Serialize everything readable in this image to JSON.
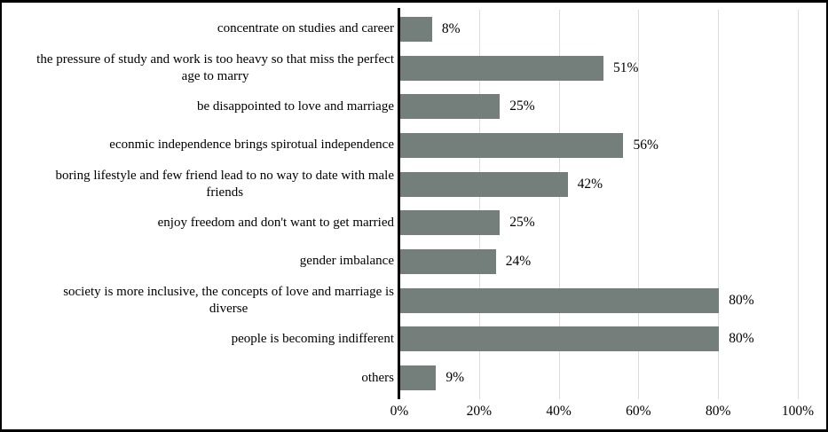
{
  "figure": {
    "title": "",
    "background": "#ffffff",
    "border_color": "#000000"
  },
  "chart_data": {
    "type": "bar",
    "orientation": "horizontal",
    "title": "",
    "xlabel": "",
    "ylabel": "",
    "xlim": [
      0,
      100
    ],
    "x_ticks": [
      0,
      20,
      40,
      60,
      80,
      100
    ],
    "x_tick_labels": [
      "0%",
      "20%",
      "40%",
      "60%",
      "80%",
      "100%"
    ],
    "grid": "vertical-gridlines-only",
    "legend": "none",
    "bar_color": "#747e7a",
    "gridline_color": "#dcdcdc",
    "axis_color": "#000000",
    "text_color": "#000000",
    "categories": [
      "concentrate on studies and career",
      "the pressure of study and work is too heavy so that miss the perfect\nage to marry",
      "be disappointed to love and marriage",
      "econmic independence brings spirotual independence",
      "boring lifestyle and few friend lead to no way to date with male\nfriends",
      "enjoy freedom and don't want to get married",
      "gender imbalance",
      "society is more inclusive, the concepts of love and marriage is\ndiverse",
      "people is becoming indifferent",
      "others"
    ],
    "values": [
      8,
      51,
      25,
      56,
      42,
      25,
      24,
      80,
      80,
      9
    ],
    "value_labels": [
      "8%",
      "51%",
      "25%",
      "56%",
      "42%",
      "25%",
      "24%",
      "80%",
      "80%",
      "9%"
    ]
  }
}
